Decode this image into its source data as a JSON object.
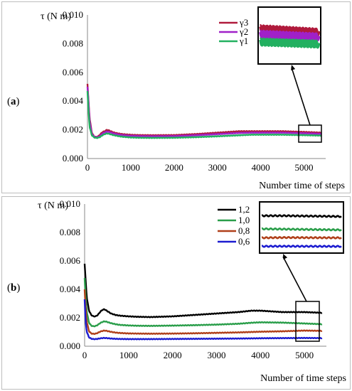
{
  "panels": [
    {
      "label_open": "(",
      "label_letter": "a",
      "label_close": ")"
    },
    {
      "label_open": "(",
      "label_letter": "b",
      "label_close": ")"
    }
  ],
  "chart_data": [
    {
      "type": "line",
      "ylabel": "τ (N m)",
      "xlabel": "Number time of steps",
      "xlim": [
        0,
        5500
      ],
      "ylim": [
        0,
        0.01
      ],
      "xticks": [
        0,
        1000,
        2000,
        3000,
        4000,
        5000
      ],
      "yticks": [
        "0.000",
        "0.002",
        "0.004",
        "0.006",
        "0.008",
        "0.010"
      ],
      "grid": false,
      "legend_position": "top-right",
      "inset": {
        "x_range": [
          4850,
          5350
        ],
        "y_range": [
          0.0013,
          0.0022
        ]
      },
      "series": [
        {
          "name": "γ3",
          "color": "#b01a3c",
          "x": [
            0,
            20,
            50,
            100,
            150,
            200,
            250,
            300,
            350,
            400,
            450,
            500,
            600,
            700,
            800,
            1000,
            1200,
            1500,
            2000,
            2500,
            3000,
            3500,
            3800,
            4000,
            4500,
            5000,
            5400
          ],
          "y": [
            0.0052,
            0.0042,
            0.0028,
            0.0018,
            0.00155,
            0.0015,
            0.00155,
            0.0017,
            0.00185,
            0.0019,
            0.002,
            0.00195,
            0.00182,
            0.00175,
            0.0017,
            0.00165,
            0.00163,
            0.00162,
            0.00163,
            0.0017,
            0.0018,
            0.0019,
            0.0019,
            0.0019,
            0.0019,
            0.00185,
            0.0018
          ]
        },
        {
          "name": "γ2",
          "color": "#a020c8",
          "x": [
            0,
            20,
            50,
            100,
            150,
            200,
            250,
            300,
            350,
            400,
            450,
            500,
            600,
            700,
            800,
            1000,
            1200,
            1500,
            2000,
            2500,
            3000,
            3500,
            3800,
            4000,
            4500,
            5000,
            5400
          ],
          "y": [
            0.005,
            0.0041,
            0.0026,
            0.00172,
            0.00153,
            0.00148,
            0.0015,
            0.0016,
            0.00175,
            0.00182,
            0.00188,
            0.00185,
            0.00175,
            0.00168,
            0.00163,
            0.00158,
            0.00156,
            0.00155,
            0.00156,
            0.00162,
            0.0017,
            0.00178,
            0.0018,
            0.0018,
            0.0018,
            0.00176,
            0.00172
          ]
        },
        {
          "name": "γ1",
          "color": "#22b060",
          "x": [
            0,
            20,
            50,
            100,
            150,
            200,
            250,
            300,
            350,
            400,
            450,
            500,
            600,
            700,
            800,
            1000,
            1200,
            1500,
            2000,
            2500,
            3000,
            3500,
            3800,
            4000,
            4500,
            5000,
            5400
          ],
          "y": [
            0.0047,
            0.0035,
            0.0022,
            0.00162,
            0.00148,
            0.00143,
            0.00145,
            0.00152,
            0.00163,
            0.0017,
            0.00175,
            0.00172,
            0.00163,
            0.00157,
            0.00152,
            0.00147,
            0.00145,
            0.00144,
            0.00145,
            0.00149,
            0.00155,
            0.00162,
            0.00166,
            0.00166,
            0.00166,
            0.00163,
            0.0016
          ]
        }
      ]
    },
    {
      "type": "line",
      "ylabel": "τ (N m)",
      "xlabel": "Number of time steps",
      "xlim": [
        0,
        5500
      ],
      "ylim": [
        0,
        0.01
      ],
      "xticks": [
        0,
        1000,
        2000,
        3000,
        4000,
        5000
      ],
      "yticks": [
        "0.000",
        "0.002",
        "0.004",
        "0.006",
        "0.008",
        "0.010"
      ],
      "grid": false,
      "legend_position": "top-right",
      "inset": {
        "x_range": [
          4850,
          5350
        ],
        "y_range": [
          0.0003,
          0.0031
        ]
      },
      "series": [
        {
          "name": "1,2",
          "color": "#000000",
          "x": [
            0,
            20,
            50,
            100,
            150,
            200,
            250,
            300,
            350,
            400,
            450,
            500,
            600,
            700,
            800,
            1000,
            1200,
            1500,
            2000,
            2500,
            3000,
            3500,
            3800,
            4000,
            4500,
            5000,
            5400
          ],
          "y": [
            0.0058,
            0.0048,
            0.0034,
            0.0025,
            0.0022,
            0.0021,
            0.0021,
            0.0022,
            0.0024,
            0.00255,
            0.0026,
            0.0025,
            0.0023,
            0.0022,
            0.00215,
            0.0021,
            0.00207,
            0.00205,
            0.0021,
            0.0022,
            0.0023,
            0.0024,
            0.0025,
            0.0025,
            0.0024,
            0.0024,
            0.00235
          ]
        },
        {
          "name": "1,0",
          "color": "#2a9e4a",
          "x": [
            0,
            20,
            50,
            100,
            150,
            200,
            250,
            300,
            350,
            400,
            450,
            500,
            600,
            700,
            800,
            1000,
            1200,
            1500,
            2000,
            2500,
            3000,
            3500,
            3800,
            4000,
            4500,
            5000,
            5400
          ],
          "y": [
            0.0048,
            0.0036,
            0.0024,
            0.00165,
            0.00145,
            0.0014,
            0.00142,
            0.0015,
            0.00162,
            0.0017,
            0.00175,
            0.00172,
            0.00162,
            0.00155,
            0.0015,
            0.00146,
            0.00144,
            0.00143,
            0.00145,
            0.00148,
            0.00152,
            0.00158,
            0.00165,
            0.00168,
            0.00166,
            0.0016,
            0.00155
          ]
        },
        {
          "name": "0,8",
          "color": "#b0401a",
          "x": [
            0,
            20,
            50,
            100,
            150,
            200,
            250,
            300,
            350,
            400,
            450,
            500,
            600,
            700,
            800,
            1000,
            1200,
            1500,
            2000,
            2500,
            3000,
            3500,
            3800,
            4000,
            4500,
            5000,
            5400
          ],
          "y": [
            0.004,
            0.0028,
            0.0017,
            0.00105,
            0.0009,
            0.00087,
            0.00088,
            0.00094,
            0.00102,
            0.00107,
            0.0011,
            0.00108,
            0.00101,
            0.00096,
            0.00093,
            0.0009,
            0.00089,
            0.00088,
            0.00089,
            0.00091,
            0.00094,
            0.00097,
            0.001,
            0.00102,
            0.00105,
            0.0011,
            0.00108
          ]
        },
        {
          "name": "0,6",
          "color": "#1c1cd0",
          "x": [
            0,
            20,
            50,
            100,
            150,
            200,
            250,
            300,
            350,
            400,
            450,
            500,
            600,
            700,
            800,
            1000,
            1200,
            1500,
            2000,
            2500,
            3000,
            3500,
            3800,
            4000,
            4500,
            5000,
            5400
          ],
          "y": [
            0.0033,
            0.0018,
            0.001,
            0.00062,
            0.00053,
            0.0005,
            0.0005,
            0.00052,
            0.00055,
            0.00057,
            0.00058,
            0.00057,
            0.00054,
            0.00052,
            0.00051,
            0.0005,
            0.0005,
            0.0005,
            0.00051,
            0.00052,
            0.00053,
            0.00054,
            0.00055,
            0.00056,
            0.00057,
            0.00058,
            0.00057
          ]
        }
      ]
    }
  ]
}
